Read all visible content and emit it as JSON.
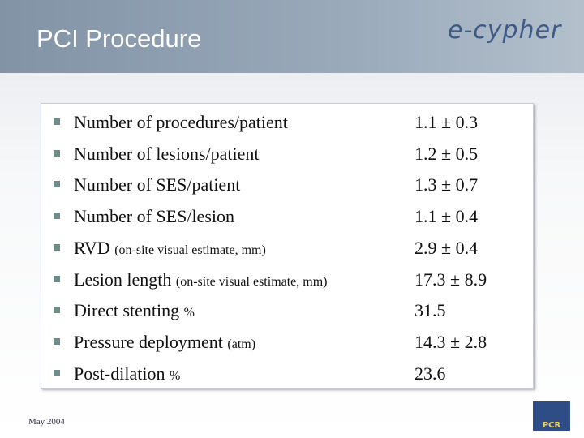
{
  "header": {
    "title": "PCI Procedure",
    "logo": "e-cypher"
  },
  "items": [
    {
      "label": "Number of procedures/patient",
      "value": "1.1 ± 0.3"
    },
    {
      "label": "Number of lesions/patient",
      "value": "1.2 ± 0.5"
    },
    {
      "label": "Number of SES/patient",
      "value": "1.3 ± 0.7"
    },
    {
      "label": "Number of SES/lesion",
      "value": "1.1 ± 0.4"
    },
    {
      "label": "RVD",
      "note": "(on-site visual estimate, mm)",
      "value": "2.9 ± 0.4"
    },
    {
      "label": "Lesion length",
      "note": "(on-site visual estimate, mm)",
      "value": "17.3 ± 8.9"
    },
    {
      "label": "Direct stenting",
      "note": "%",
      "value": "31.5"
    },
    {
      "label": "Pressure deployment",
      "note": "(atm)",
      "value": "14.3 ± 2.8"
    },
    {
      "label": "Post-dilation",
      "note": "%",
      "value": "23.6"
    }
  ],
  "footer": {
    "date": "May 2004",
    "badge": "PCR"
  }
}
